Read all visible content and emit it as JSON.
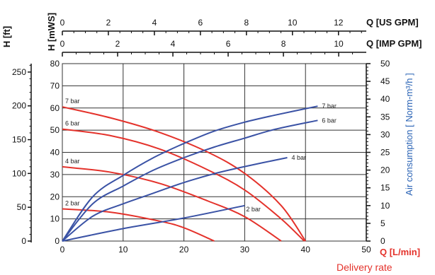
{
  "colors": {
    "pressure": "#e4322b",
    "air": "#3a52a5",
    "grid": "#333333",
    "axis": "#111111",
    "bluetext": "#2a63b5"
  },
  "chart_data": {
    "type": "line",
    "x_axis": {
      "label": "Q [L/min]",
      "sublabel": "Delivery rate",
      "range": [
        0,
        50
      ],
      "ticks": [
        0,
        10,
        20,
        30,
        40,
        50
      ]
    },
    "y_axis_left_mws": {
      "label": "H [mWS]",
      "range": [
        0,
        80
      ],
      "ticks": [
        0,
        10,
        20,
        30,
        40,
        50,
        60,
        70,
        80
      ]
    },
    "y_axis_left_ft": {
      "label": "H [ft]",
      "range_in_mws": [
        0,
        80
      ],
      "ticks": [
        0,
        50,
        100,
        150,
        200,
        250
      ]
    },
    "y_axis_right": {
      "label": "Air consumption [ Norm-m³/h ]",
      "range": [
        0,
        50
      ],
      "ticks": [
        0,
        5,
        10,
        15,
        20,
        25,
        30,
        35,
        40,
        45,
        50
      ]
    },
    "top_axis_us": {
      "label": "Q [US GPM]",
      "ticks": [
        0,
        2,
        4,
        6,
        8,
        10,
        12
      ]
    },
    "top_axis_imp": {
      "label": "Q [IMP GPM]",
      "ticks": [
        0,
        2,
        4,
        6,
        8,
        10
      ]
    },
    "grid": true,
    "series": [
      {
        "name": "7 bar",
        "kind": "head",
        "x": [
          0,
          8,
          16,
          24,
          30,
          36,
          40
        ],
        "y": [
          60.5,
          55.5,
          49,
          40,
          30.5,
          16,
          0
        ]
      },
      {
        "name": "6 bar",
        "kind": "head",
        "x": [
          0,
          8,
          16,
          24,
          30,
          36,
          39.8
        ],
        "y": [
          50.5,
          47.5,
          41.5,
          32,
          23,
          10,
          0
        ]
      },
      {
        "name": "4 bar",
        "kind": "head",
        "x": [
          0,
          8,
          16,
          24,
          30,
          36
        ],
        "y": [
          33.5,
          31,
          26,
          18,
          11,
          0
        ]
      },
      {
        "name": "2 bar",
        "kind": "head",
        "x": [
          0,
          8,
          16,
          20,
          25
        ],
        "y": [
          14.5,
          13,
          9,
          6,
          0
        ]
      },
      {
        "name": "7 bar",
        "kind": "air",
        "x": [
          0,
          5,
          10,
          15,
          20,
          25,
          30,
          35,
          42
        ],
        "y": [
          0,
          12.5,
          18.5,
          23.5,
          27.5,
          31,
          33.5,
          35.5,
          38
        ]
      },
      {
        "name": "6 bar",
        "kind": "air",
        "x": [
          0,
          5,
          10,
          15,
          20,
          25,
          30,
          35,
          42
        ],
        "y": [
          0,
          10.5,
          15.5,
          20,
          23.5,
          26.5,
          29,
          31.5,
          34
        ]
      },
      {
        "name": "4 bar",
        "kind": "air",
        "x": [
          0,
          5,
          10,
          15,
          20,
          25,
          30,
          37
        ],
        "y": [
          0,
          7,
          10.5,
          13.5,
          16.5,
          19,
          21,
          23.5
        ]
      },
      {
        "name": "2 bar",
        "kind": "air",
        "x": [
          0,
          10,
          20,
          30
        ],
        "y": [
          0,
          3.5,
          6.5,
          10
        ]
      }
    ]
  }
}
